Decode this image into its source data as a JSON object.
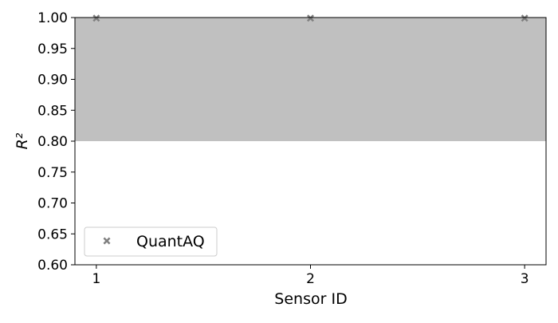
{
  "chart_data": {
    "type": "scatter",
    "title": "",
    "xlabel": "Sensor ID",
    "ylabel": "R²",
    "xlim": [
      0.9,
      3.1
    ],
    "ylim": [
      0.6,
      1.0
    ],
    "x_ticks": [
      "1",
      "2",
      "3"
    ],
    "y_ticks": [
      "0.60",
      "0.65",
      "0.70",
      "0.75",
      "0.80",
      "0.85",
      "0.90",
      "0.95",
      "1.00"
    ],
    "grid": false,
    "legend": {
      "placement": "lower-left"
    },
    "shaded_band": {
      "y_from": 0.8,
      "y_to": 1.0,
      "color": "#c0c0c0"
    },
    "series": [
      {
        "name": "QuantAQ",
        "marker": "x-filled",
        "color": "#808080",
        "x": [
          1,
          2,
          3
        ],
        "y": [
          0.999,
          0.999,
          0.999
        ]
      }
    ]
  }
}
